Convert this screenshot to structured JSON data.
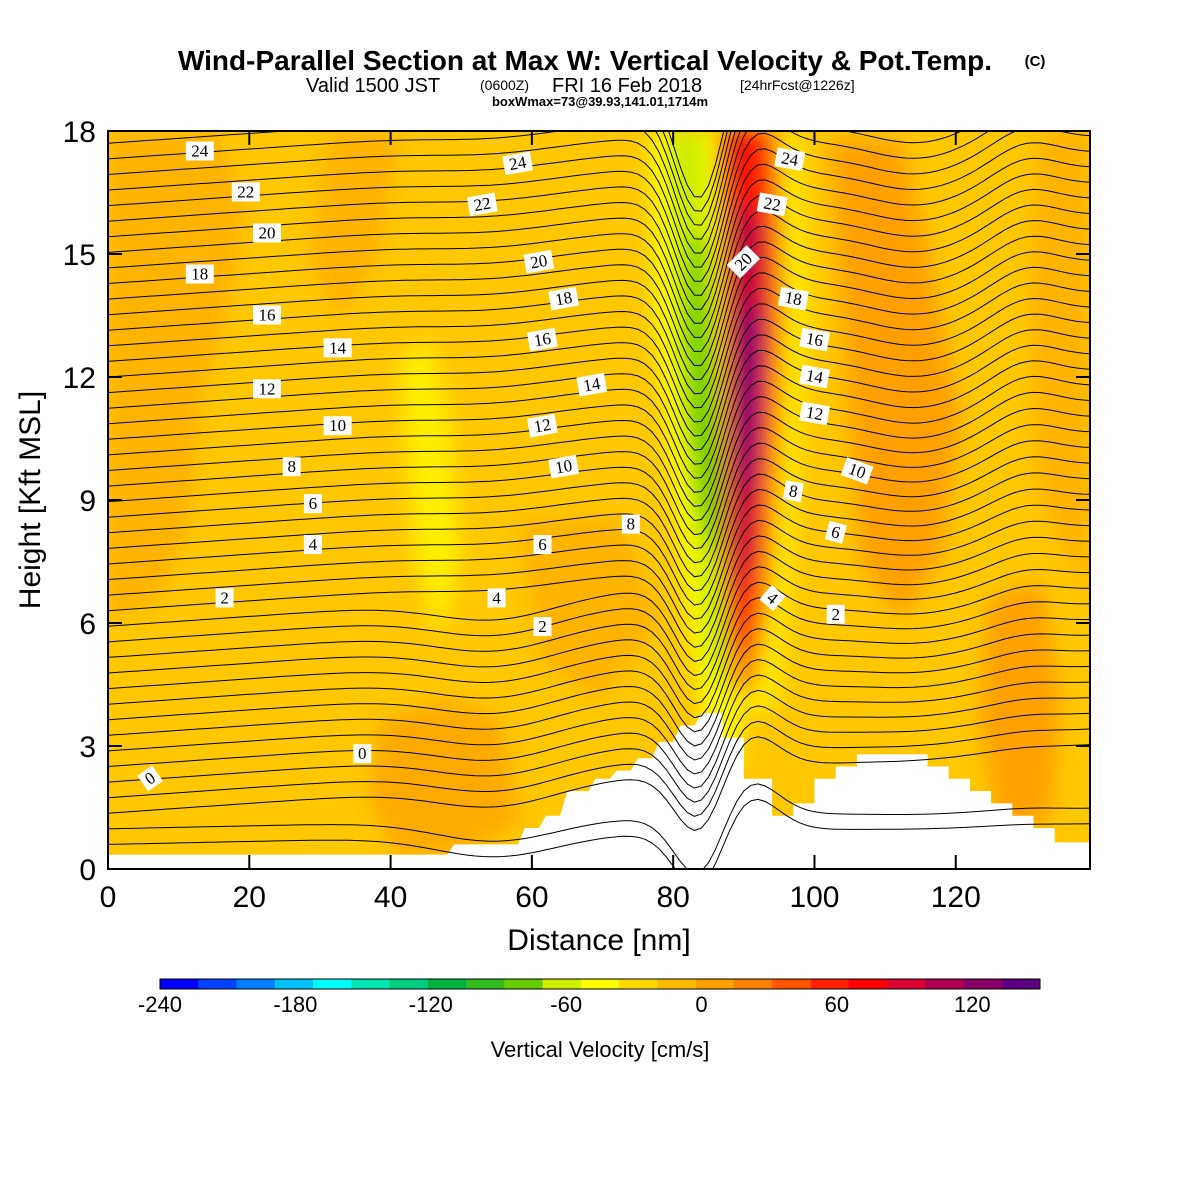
{
  "chart_data": {
    "type": "heatmap",
    "title": "Wind-Parallel Section at Max W: Vertical Velocity & Pot.Temp.",
    "title_mark": "(C)",
    "subtitle_valid": "Valid 1500 JST",
    "subtitle_utc": "(0600Z)",
    "subtitle_date": "FRI 16 Feb 2018",
    "subtitle_fcst": "[24hrFcst@1226z]",
    "subtitle_box": "boxWmax=73@39.93,141.01,1714m",
    "xlabel": "Distance [nm]",
    "ylabel": "Height [Kft MSL]",
    "xlim": [
      0,
      139
    ],
    "ylim": [
      0,
      18
    ],
    "x_ticks": [
      0,
      20,
      40,
      60,
      80,
      100,
      120
    ],
    "x_tick_labels": [
      "0",
      "20",
      "40",
      "60",
      "80",
      "100",
      "120"
    ],
    "y_ticks": [
      0,
      3,
      6,
      9,
      12,
      15,
      18
    ],
    "y_tick_labels": [
      "0",
      "3",
      "6",
      "9",
      "12",
      "15",
      "18"
    ],
    "colorbar": {
      "label": "Vertical Velocity [cm/s]",
      "range": [
        -240,
        150
      ],
      "tick_values": [
        -240,
        -180,
        -120,
        -60,
        0,
        60,
        120
      ],
      "tick_labels": [
        "-240",
        "-180",
        "-120",
        "-60",
        "0",
        "60",
        "120"
      ],
      "colors": [
        "#0000ff",
        "#0040ff",
        "#0080ff",
        "#00c0ff",
        "#00ffff",
        "#00e6b0",
        "#00cc80",
        "#00b040",
        "#33bb22",
        "#66cc00",
        "#ccee00",
        "#ffff00",
        "#ffd800",
        "#ffbb00",
        "#ffa000",
        "#ff8000",
        "#ff5500",
        "#ff2000",
        "#ff0000",
        "#dd0033",
        "#b00050",
        "#880066",
        "#5c0080"
      ]
    },
    "terrain_kft": [
      [
        0,
        0.35
      ],
      [
        7,
        0.35
      ],
      [
        7,
        0.35
      ],
      [
        48,
        0.35
      ],
      [
        49,
        0.6
      ],
      [
        58,
        0.6
      ],
      [
        59,
        1.0
      ],
      [
        61,
        1.0
      ],
      [
        62,
        1.3
      ],
      [
        64,
        1.3
      ],
      [
        65,
        1.9
      ],
      [
        68,
        1.9
      ],
      [
        69,
        2.2
      ],
      [
        71,
        2.2
      ],
      [
        72,
        2.4
      ],
      [
        74,
        2.4
      ],
      [
        75,
        2.7
      ],
      [
        77,
        2.7
      ],
      [
        78,
        3.1
      ],
      [
        80,
        3.1
      ],
      [
        81,
        3.5
      ],
      [
        83,
        3.5
      ],
      [
        84,
        3.8
      ],
      [
        87,
        3.8
      ],
      [
        87,
        3.2
      ],
      [
        90,
        3.2
      ],
      [
        90,
        2.2
      ],
      [
        94,
        2.2
      ],
      [
        94,
        1.3
      ],
      [
        97,
        1.3
      ],
      [
        97,
        1.6
      ],
      [
        100,
        1.6
      ],
      [
        100,
        2.2
      ],
      [
        103,
        2.2
      ],
      [
        103,
        2.5
      ],
      [
        106,
        2.5
      ],
      [
        106,
        2.8
      ],
      [
        116,
        2.8
      ],
      [
        116,
        2.5
      ],
      [
        119,
        2.5
      ],
      [
        119,
        2.2
      ],
      [
        122,
        2.2
      ],
      [
        122,
        1.9
      ],
      [
        125,
        1.9
      ],
      [
        125,
        1.6
      ],
      [
        128,
        1.6
      ],
      [
        128,
        1.3
      ],
      [
        131,
        1.3
      ],
      [
        131,
        1.0
      ],
      [
        134,
        1.0
      ],
      [
        134,
        0.65
      ],
      [
        139,
        0.65
      ]
    ],
    "theta_contour_labels": [
      {
        "text": "24",
        "x": 13,
        "y": 17.5,
        "angle": 0
      },
      {
        "text": "22",
        "x": 19.5,
        "y": 16.5,
        "angle": 0
      },
      {
        "text": "20",
        "x": 22.5,
        "y": 15.5,
        "angle": 0
      },
      {
        "text": "18",
        "x": 13,
        "y": 14.5,
        "angle": 0
      },
      {
        "text": "16",
        "x": 22.5,
        "y": 13.5,
        "angle": 0
      },
      {
        "text": "14",
        "x": 32.5,
        "y": 12.7,
        "angle": 0
      },
      {
        "text": "12",
        "x": 22.5,
        "y": 11.7,
        "angle": 0
      },
      {
        "text": "10",
        "x": 32.5,
        "y": 10.8,
        "angle": 0
      },
      {
        "text": "8",
        "x": 26,
        "y": 9.8,
        "angle": 0
      },
      {
        "text": "6",
        "x": 29,
        "y": 8.9,
        "angle": 0
      },
      {
        "text": "4",
        "x": 29,
        "y": 7.9,
        "angle": 0
      },
      {
        "text": "2",
        "x": 16.5,
        "y": 6.6,
        "angle": 0
      },
      {
        "text": "0",
        "x": 36,
        "y": 2.8,
        "angle": 0
      },
      {
        "text": "0",
        "x": 6,
        "y": 2.2,
        "angle": -35
      },
      {
        "text": "24",
        "x": 58,
        "y": 17.2,
        "angle": -10
      },
      {
        "text": "22",
        "x": 53,
        "y": 16.2,
        "angle": -10
      },
      {
        "text": "20",
        "x": 61,
        "y": 14.8,
        "angle": -10
      },
      {
        "text": "18",
        "x": 64.5,
        "y": 13.9,
        "angle": -10
      },
      {
        "text": "16",
        "x": 61.5,
        "y": 12.9,
        "angle": -10
      },
      {
        "text": "14",
        "x": 68.5,
        "y": 11.8,
        "angle": -10
      },
      {
        "text": "12",
        "x": 61.5,
        "y": 10.8,
        "angle": -10
      },
      {
        "text": "10",
        "x": 64.5,
        "y": 9.8,
        "angle": -10
      },
      {
        "text": "8",
        "x": 74,
        "y": 8.4,
        "angle": 0
      },
      {
        "text": "6",
        "x": 61.5,
        "y": 7.9,
        "angle": 0
      },
      {
        "text": "4",
        "x": 55,
        "y": 6.6,
        "angle": 0
      },
      {
        "text": "2",
        "x": 61.5,
        "y": 5.9,
        "angle": 0
      },
      {
        "text": "24",
        "x": 96.5,
        "y": 17.3,
        "angle": 10
      },
      {
        "text": "22",
        "x": 94,
        "y": 16.2,
        "angle": 10
      },
      {
        "text": "20",
        "x": 90,
        "y": 14.8,
        "angle": -45
      },
      {
        "text": "18",
        "x": 97,
        "y": 13.9,
        "angle": 10
      },
      {
        "text": "16",
        "x": 100,
        "y": 12.9,
        "angle": 10
      },
      {
        "text": "14",
        "x": 100,
        "y": 12.0,
        "angle": 10
      },
      {
        "text": "12",
        "x": 100,
        "y": 11.1,
        "angle": 10
      },
      {
        "text": "10",
        "x": 106,
        "y": 9.7,
        "angle": 20
      },
      {
        "text": "8",
        "x": 97,
        "y": 9.2,
        "angle": 10
      },
      {
        "text": "6",
        "x": 103,
        "y": 8.2,
        "angle": 15
      },
      {
        "text": "4",
        "x": 94,
        "y": 6.6,
        "angle": 40
      },
      {
        "text": "2",
        "x": 103,
        "y": 6.2,
        "angle": 0
      }
    ]
  }
}
